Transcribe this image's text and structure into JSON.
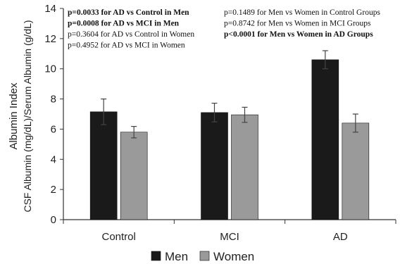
{
  "chart_data": {
    "type": "bar",
    "categories": [
      "Control",
      "MCI",
      "AD"
    ],
    "series": [
      {
        "name": "Men",
        "color": "#1a1a1a",
        "values": [
          7.15,
          7.1,
          10.6
        ],
        "errors": [
          0.85,
          0.62,
          0.6
        ]
      },
      {
        "name": "Women",
        "color": "#9a9a9a",
        "values": [
          5.8,
          6.95,
          6.4
        ],
        "errors": [
          0.38,
          0.5,
          0.6
        ]
      }
    ],
    "ylabel_line1": "Albumin Index",
    "ylabel_line2": "CSF Albumin (mg/dL)/Serum Albumin (g/dL)",
    "ylim": [
      0,
      14
    ],
    "yticks": [
      0,
      2,
      4,
      6,
      8,
      10,
      12,
      14
    ],
    "grid": false,
    "legend_placement": "bottom-center",
    "annotations_left": [
      {
        "text": "p=0.0033 for AD vs Control in Men",
        "bold": true
      },
      {
        "text": "p=0.0008 for AD vs MCI in Men",
        "bold": true
      },
      {
        "text": "p=0.3604 for AD vs Control in Women",
        "bold": false
      },
      {
        "text": "p=0.4952 for AD vs MCI in Women",
        "bold": false
      }
    ],
    "annotations_right": [
      {
        "text": "p=0.1489 for Men vs Women in Control Groups",
        "bold": false
      },
      {
        "text": "p=0.8742 for Men vs Women in MCI Groups",
        "bold": false
      },
      {
        "text": "p<0.0001 for Men vs Women in AD Groups",
        "bold": true
      }
    ]
  }
}
